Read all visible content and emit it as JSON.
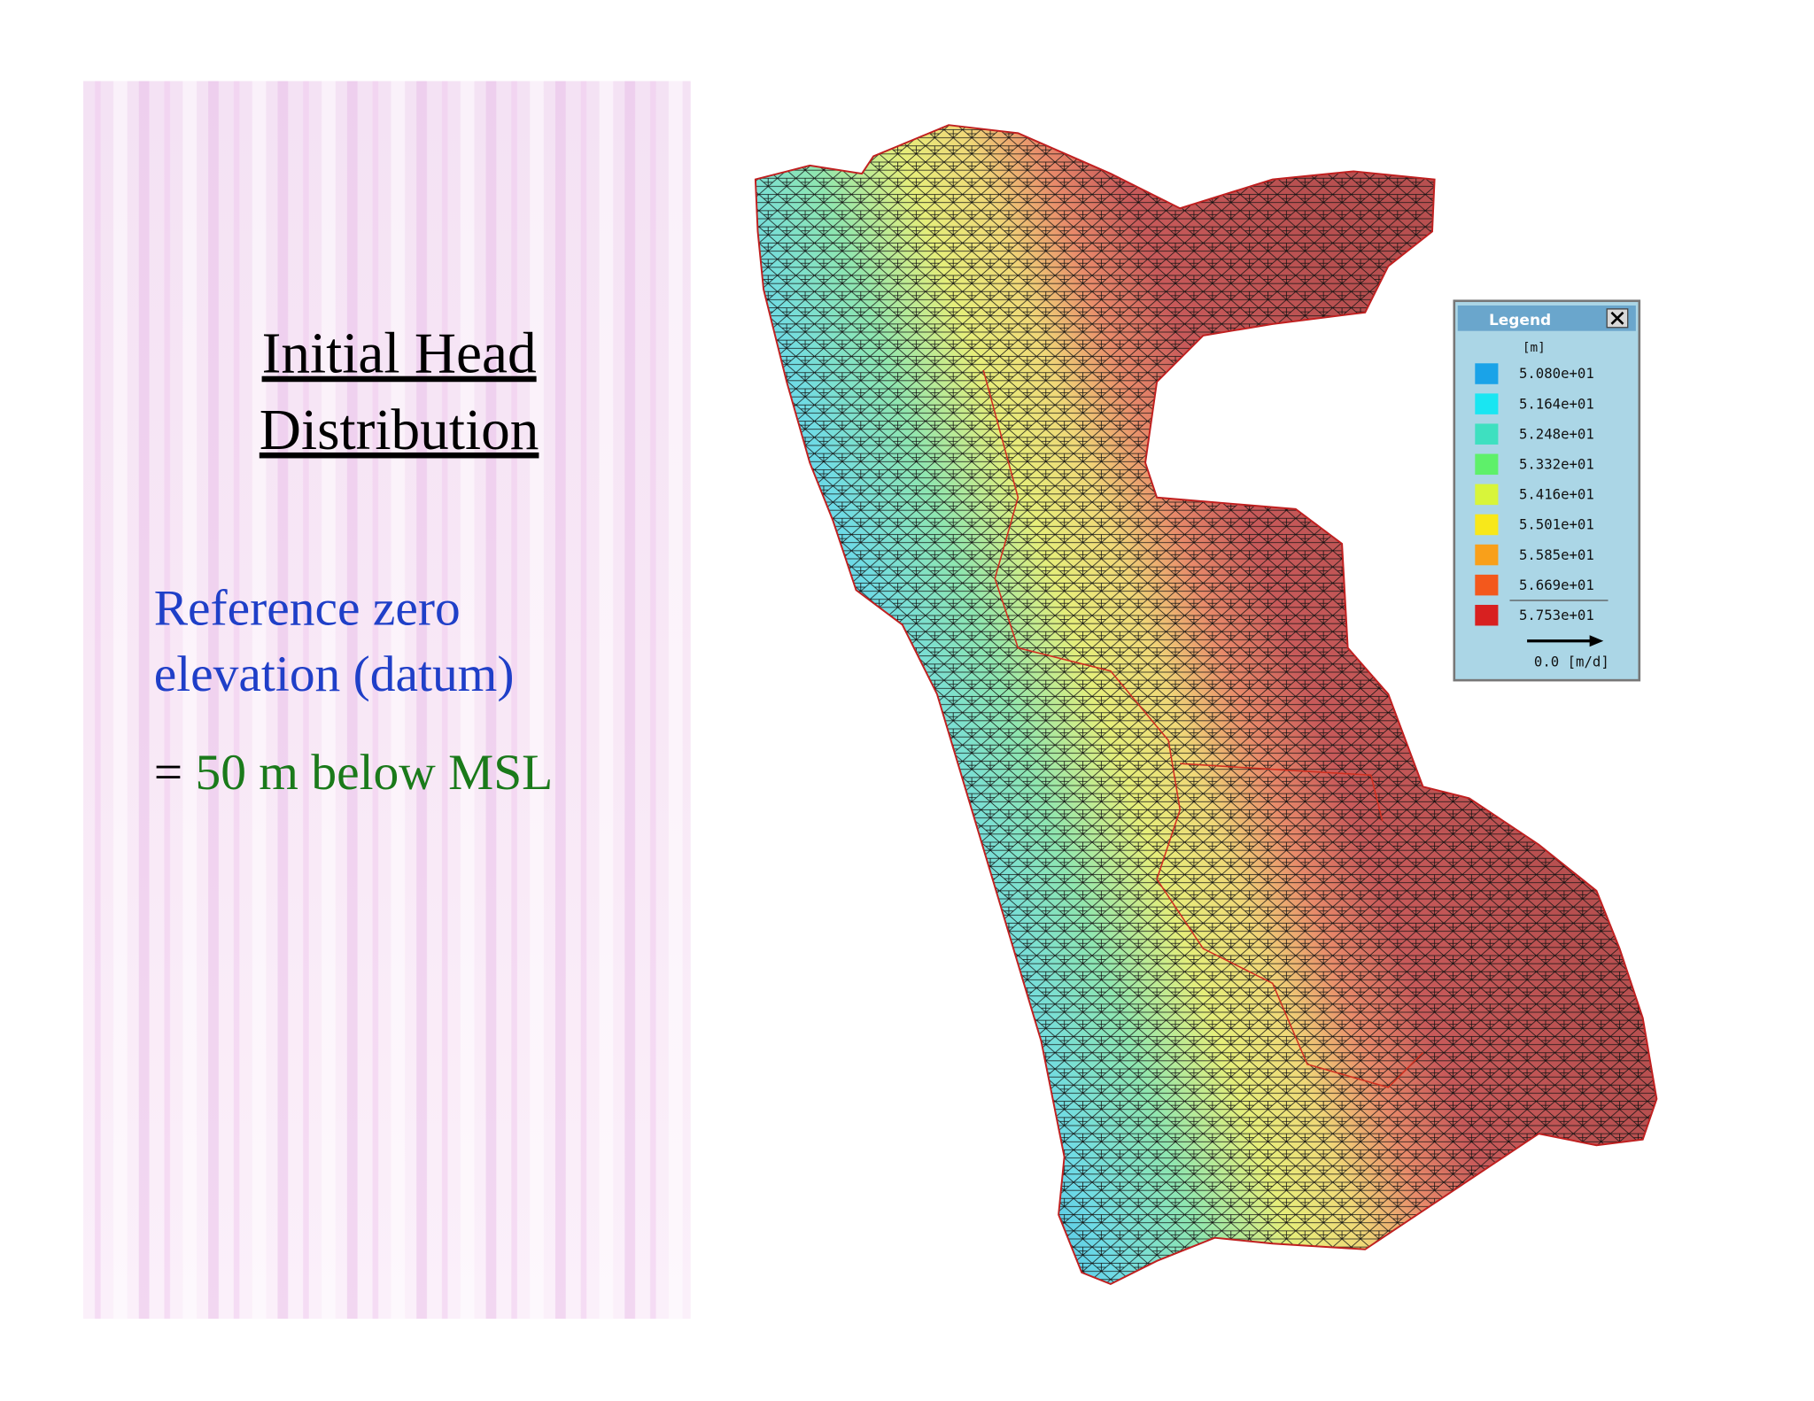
{
  "slide": {
    "title_lines": [
      "Initial Head",
      "Distribution"
    ],
    "body": {
      "line1": "Reference zero",
      "line2": "elevation (datum)",
      "eq_sign": "=",
      "eq_text": "50 m below MSL"
    }
  },
  "legend": {
    "title": "Legend",
    "unit": "[m]",
    "items": [
      {
        "label": "5.080e+01",
        "color": "#1aa3e8"
      },
      {
        "label": "5.164e+01",
        "color": "#19e6f2"
      },
      {
        "label": "5.248e+01",
        "color": "#3ee0c0"
      },
      {
        "label": "5.332e+01",
        "color": "#5ef06a"
      },
      {
        "label": "5.416e+01",
        "color": "#d8f53a"
      },
      {
        "label": "5.501e+01",
        "color": "#f8e81a"
      },
      {
        "label": "5.585e+01",
        "color": "#f9a01a"
      },
      {
        "label": "5.669e+01",
        "color": "#f3581c"
      },
      {
        "label": "5.753e+01",
        "color": "#d82020"
      }
    ],
    "vector_label": "0.0 [m/d]"
  }
}
